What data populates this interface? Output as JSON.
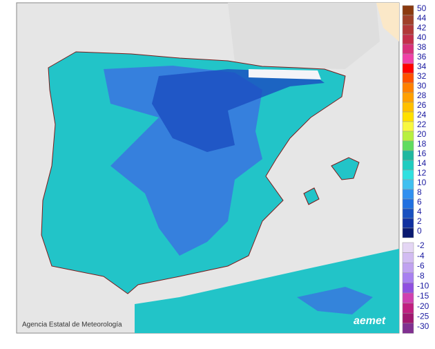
{
  "footer": {
    "credit": "Agencia Estatal de Meteorología",
    "logo": "aemet"
  },
  "legend": {
    "items": [
      {
        "value": 50,
        "color": "#8b3a10"
      },
      {
        "value": 44,
        "color": "#a0402a"
      },
      {
        "value": 42,
        "color": "#b23838"
      },
      {
        "value": 40,
        "color": "#c42e4a"
      },
      {
        "value": 38,
        "color": "#d8307a"
      },
      {
        "value": 36,
        "color": "#f040a8"
      },
      {
        "value": 34,
        "color": "#ff0000"
      },
      {
        "value": 32,
        "color": "#ff5000"
      },
      {
        "value": 30,
        "color": "#ff8000"
      },
      {
        "value": 28,
        "color": "#ffa000"
      },
      {
        "value": 26,
        "color": "#ffc000"
      },
      {
        "value": 24,
        "color": "#ffe000"
      },
      {
        "value": 22,
        "color": "#f8f840"
      },
      {
        "value": 20,
        "color": "#b8f040"
      },
      {
        "value": 18,
        "color": "#60dc60"
      },
      {
        "value": 16,
        "color": "#20b8a0"
      },
      {
        "value": 14,
        "color": "#20ccc0"
      },
      {
        "value": 12,
        "color": "#30e0e0"
      },
      {
        "value": 10,
        "color": "#40c0f0"
      },
      {
        "value": 8,
        "color": "#3090f0"
      },
      {
        "value": 6,
        "color": "#2070e0"
      },
      {
        "value": 4,
        "color": "#1850c0"
      },
      {
        "value": 2,
        "color": "#1030a0"
      },
      {
        "value": 0,
        "color": "#0a1a70"
      },
      {
        "value": -2,
        "color": "#e4d6f4"
      },
      {
        "value": -4,
        "color": "#d2bcf2"
      },
      {
        "value": -6,
        "color": "#c0a2f0"
      },
      {
        "value": -8,
        "color": "#a880f0"
      },
      {
        "value": -10,
        "color": "#9050e0"
      },
      {
        "value": -15,
        "color": "#d040b0"
      },
      {
        "value": -20,
        "color": "#c02080"
      },
      {
        "value": -25,
        "color": "#a01870"
      },
      {
        "value": -30,
        "color": "#803090"
      }
    ]
  }
}
